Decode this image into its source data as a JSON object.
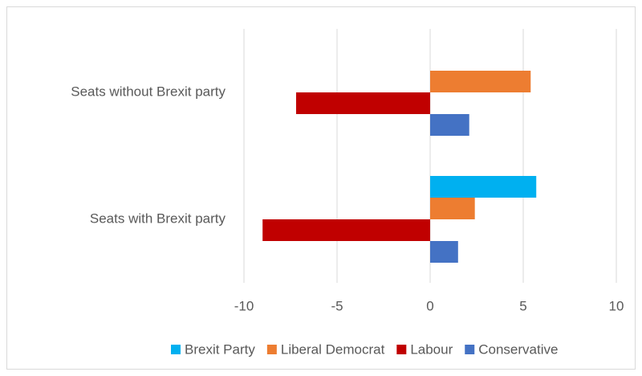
{
  "chart_data": {
    "type": "bar",
    "orientation": "horizontal",
    "categories": [
      "Seats with Brexit party",
      "Seats without Brexit party"
    ],
    "series": [
      {
        "name": "Brexit Party",
        "color": "#00b0f0",
        "values": [
          5.7,
          null
        ]
      },
      {
        "name": "Liberal Democrat",
        "color": "#ed7d31",
        "values": [
          2.4,
          5.4
        ]
      },
      {
        "name": "Labour",
        "color": "#c00000",
        "values": [
          -9.0,
          -7.2
        ]
      },
      {
        "name": "Conservative",
        "color": "#4472c4",
        "values": [
          1.5,
          2.1
        ]
      }
    ],
    "xlim": [
      -10,
      10
    ],
    "xticks": [
      -10,
      -5,
      0,
      5,
      10
    ],
    "grid": true,
    "legend": "bottom"
  }
}
